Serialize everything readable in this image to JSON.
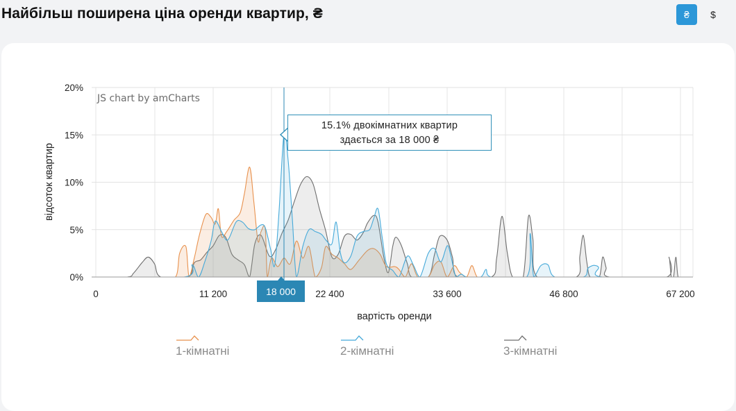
{
  "header": {
    "title": "Найбільш поширена ціна оренди квартир, ₴",
    "currency_buttons": [
      {
        "label": "₴",
        "active": true
      },
      {
        "label": "$",
        "active": false
      }
    ]
  },
  "chart_data": {
    "type": "area",
    "credit": "JS chart by amCharts",
    "xlabel": "вартість оренди",
    "ylabel": "відсоток квартир",
    "y_ticks": [
      "0%",
      "5%",
      "10%",
      "15%",
      "20%"
    ],
    "ylim": [
      0,
      20
    ],
    "x_ticks": [
      "0",
      "11 200",
      "22 400",
      "33 600",
      "46 800",
      "67 200"
    ],
    "grid": true,
    "legend_position": "bottom",
    "cursor": {
      "label": "18 000",
      "series": "2-кімнатні",
      "value": 15.1
    },
    "tooltip": {
      "line1": "15.1% двокімнатних квартир",
      "line2": "здається за 18 000 ₴"
    },
    "series": [
      {
        "name": "1-кімнатні",
        "color": "#e8914d",
        "points": [
          [
            0,
            0
          ],
          [
            6000,
            0
          ],
          [
            7600,
            0
          ],
          [
            8000,
            2.5
          ],
          [
            8600,
            3.2
          ],
          [
            8900,
            0
          ],
          [
            9400,
            2.0
          ],
          [
            9900,
            4.5
          ],
          [
            10500,
            6.6
          ],
          [
            11000,
            6.3
          ],
          [
            11400,
            5.6
          ],
          [
            11700,
            7.2
          ],
          [
            12000,
            4.3
          ],
          [
            12500,
            4.8
          ],
          [
            13200,
            6.0
          ],
          [
            13800,
            6.8
          ],
          [
            14200,
            8.8
          ],
          [
            14700,
            11.6
          ],
          [
            15100,
            8.0
          ],
          [
            15500,
            3.8
          ],
          [
            15800,
            4.8
          ],
          [
            16200,
            5.1
          ],
          [
            16400,
            0
          ],
          [
            16800,
            2.0
          ],
          [
            17400,
            1.1
          ],
          [
            18000,
            2.0
          ],
          [
            18600,
            1.4
          ],
          [
            19200,
            3.8
          ],
          [
            19800,
            2.0
          ],
          [
            20400,
            3.2
          ],
          [
            21000,
            0
          ],
          [
            21600,
            1.0
          ],
          [
            22000,
            3.2
          ],
          [
            22600,
            2.4
          ],
          [
            23200,
            2.0
          ],
          [
            23800,
            1.4
          ],
          [
            24400,
            0.8
          ],
          [
            25200,
            1.8
          ],
          [
            26000,
            2.8
          ],
          [
            26600,
            3.0
          ],
          [
            27200,
            2.4
          ],
          [
            27800,
            1.1
          ],
          [
            28600,
            1.1
          ],
          [
            29000,
            0.8
          ],
          [
            29600,
            0
          ],
          [
            30200,
            1.4
          ],
          [
            30800,
            0
          ],
          [
            31800,
            0
          ],
          [
            32400,
            1.3
          ],
          [
            33000,
            1.6
          ],
          [
            33600,
            0
          ],
          [
            34400,
            1.2
          ],
          [
            35000,
            0.5
          ],
          [
            35800,
            0
          ],
          [
            36400,
            1.2
          ],
          [
            37000,
            0
          ],
          [
            38000,
            0
          ],
          [
            67500,
            0
          ]
        ]
      },
      {
        "name": "2-кімнатні",
        "color": "#45a9d9",
        "points": [
          [
            0,
            0
          ],
          [
            8400,
            0
          ],
          [
            9200,
            1.3
          ],
          [
            9800,
            0
          ],
          [
            10400,
            1.6
          ],
          [
            11000,
            3.8
          ],
          [
            11400,
            5.9
          ],
          [
            12000,
            4.8
          ],
          [
            12600,
            3.9
          ],
          [
            13400,
            5.8
          ],
          [
            14000,
            5.8
          ],
          [
            14600,
            5.1
          ],
          [
            15200,
            5.0
          ],
          [
            15800,
            5.5
          ],
          [
            16200,
            5.2
          ],
          [
            16700,
            3.0
          ],
          [
            17100,
            1.2
          ],
          [
            17500,
            6.5
          ],
          [
            18000,
            15.1
          ],
          [
            18400,
            12.3
          ],
          [
            18800,
            6.2
          ],
          [
            19200,
            0
          ],
          [
            19800,
            3.2
          ],
          [
            20400,
            5.0
          ],
          [
            21000,
            4.8
          ],
          [
            21600,
            4.5
          ],
          [
            22100,
            3.8
          ],
          [
            22600,
            3.5
          ],
          [
            23000,
            5.8
          ],
          [
            23400,
            2.6
          ],
          [
            23800,
            1.5
          ],
          [
            24400,
            2.2
          ],
          [
            25000,
            4.3
          ],
          [
            25600,
            4.8
          ],
          [
            26200,
            5.0
          ],
          [
            26600,
            6.2
          ],
          [
            27000,
            7.2
          ],
          [
            27400,
            4.2
          ],
          [
            27800,
            1.4
          ],
          [
            28400,
            0.7
          ],
          [
            29000,
            0
          ],
          [
            29800,
            2.2
          ],
          [
            30400,
            1.2
          ],
          [
            31000,
            0
          ],
          [
            31800,
            2.5
          ],
          [
            32400,
            3.0
          ],
          [
            33000,
            1.6
          ],
          [
            33600,
            3.3
          ],
          [
            34000,
            2.3
          ],
          [
            34600,
            0
          ],
          [
            35200,
            0.3
          ],
          [
            35800,
            0
          ],
          [
            37400,
            0
          ],
          [
            38000,
            0.8
          ],
          [
            38600,
            0
          ],
          [
            42600,
            0
          ],
          [
            43000,
            4.6
          ],
          [
            43400,
            0
          ],
          [
            44200,
            1.2
          ],
          [
            45000,
            1.3
          ],
          [
            45800,
            0
          ],
          [
            50200,
            0
          ],
          [
            51000,
            0.9
          ],
          [
            51800,
            1.2
          ],
          [
            52400,
            1.2
          ],
          [
            52900,
            1.0
          ],
          [
            53500,
            0
          ],
          [
            67500,
            0
          ]
        ]
      },
      {
        "name": "3-кімнатні",
        "color": "#6e6e6e",
        "points": [
          [
            0,
            0
          ],
          [
            3000,
            0
          ],
          [
            3600,
            0.4
          ],
          [
            4400,
            1.5
          ],
          [
            5000,
            2.1
          ],
          [
            5600,
            1.4
          ],
          [
            6200,
            0
          ],
          [
            8800,
            0
          ],
          [
            9400,
            1.5
          ],
          [
            10000,
            1.8
          ],
          [
            10600,
            2.6
          ],
          [
            11200,
            3.3
          ],
          [
            11800,
            4.4
          ],
          [
            12400,
            4.2
          ],
          [
            13000,
            2.4
          ],
          [
            13600,
            1.8
          ],
          [
            14200,
            1.3
          ],
          [
            14700,
            0
          ],
          [
            15200,
            3.5
          ],
          [
            15800,
            4.4
          ],
          [
            16600,
            2.2
          ],
          [
            17200,
            2.9
          ],
          [
            17800,
            4.6
          ],
          [
            18400,
            6.0
          ],
          [
            19000,
            8.0
          ],
          [
            19600,
            9.8
          ],
          [
            20200,
            10.6
          ],
          [
            20800,
            9.8
          ],
          [
            21400,
            7.2
          ],
          [
            22000,
            4.9
          ],
          [
            22600,
            2.1
          ],
          [
            23200,
            2.4
          ],
          [
            23800,
            4.3
          ],
          [
            24400,
            4.5
          ],
          [
            25000,
            3.9
          ],
          [
            25600,
            4.7
          ],
          [
            26000,
            5.7
          ],
          [
            26600,
            6.5
          ],
          [
            27000,
            5.8
          ],
          [
            27600,
            1.8
          ],
          [
            28000,
            0.5
          ],
          [
            28400,
            3.2
          ],
          [
            28700,
            4.2
          ],
          [
            29200,
            3.4
          ],
          [
            29800,
            1.4
          ],
          [
            30200,
            0
          ],
          [
            31800,
            0
          ],
          [
            32400,
            2.4
          ],
          [
            32900,
            4.3
          ],
          [
            33600,
            3.9
          ],
          [
            34200,
            2.1
          ],
          [
            34800,
            0
          ],
          [
            38600,
            0
          ],
          [
            39200,
            2.0
          ],
          [
            39800,
            6.4
          ],
          [
            40400,
            2.6
          ],
          [
            41000,
            0
          ],
          [
            42200,
            0
          ],
          [
            42800,
            6.4
          ],
          [
            43300,
            4.0
          ],
          [
            43800,
            0
          ],
          [
            49000,
            0
          ],
          [
            49600,
            2.2
          ],
          [
            50200,
            4.4
          ],
          [
            50800,
            1.7
          ],
          [
            51400,
            0
          ],
          [
            53000,
            0
          ],
          [
            53600,
            2.1
          ],
          [
            54200,
            1.0
          ],
          [
            54800,
            0
          ],
          [
            64800,
            0
          ],
          [
            65200,
            2.1
          ],
          [
            65600,
            0
          ],
          [
            66000,
            0
          ],
          [
            66400,
            2.1
          ],
          [
            66800,
            0
          ],
          [
            67500,
            0
          ]
        ]
      }
    ]
  }
}
